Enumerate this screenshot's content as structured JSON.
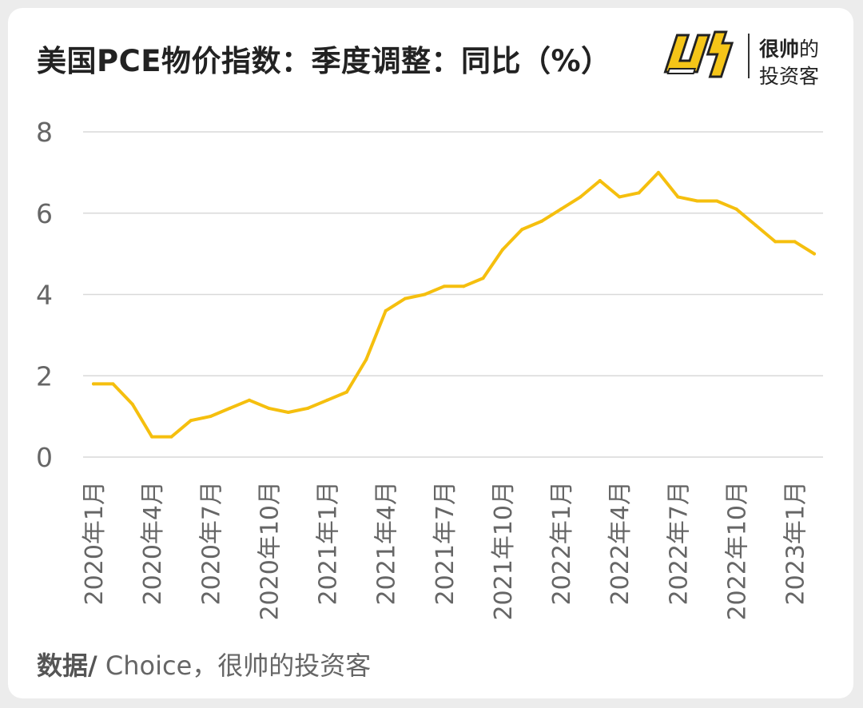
{
  "title": "美国PCE物价指数：季度调整：同比（%）",
  "brand": {
    "logo_icon": "shuai-logo-icon",
    "line1_bold": "很帅",
    "line1_rest": "的",
    "line2": "投资客"
  },
  "source": {
    "prefix": "数据/",
    "text": " Choice，很帅的投资客"
  },
  "colors": {
    "line": "#F5BF0E",
    "grid": "#D9D9D9",
    "tick_text": "#666666"
  },
  "chart_data": {
    "type": "line",
    "title": "美国PCE物价指数：季度调整：同比（%）",
    "xlabel": "",
    "ylabel": "",
    "ylim": [
      0,
      8
    ],
    "yticks": [
      "0",
      "2",
      "4",
      "6",
      "8"
    ],
    "grid": true,
    "legend": "none",
    "x": [
      "2020-01",
      "2020-02",
      "2020-03",
      "2020-04",
      "2020-05",
      "2020-06",
      "2020-07",
      "2020-08",
      "2020-09",
      "2020-10",
      "2020-11",
      "2020-12",
      "2021-01",
      "2021-02",
      "2021-03",
      "2021-04",
      "2021-05",
      "2021-06",
      "2021-07",
      "2021-08",
      "2021-09",
      "2021-10",
      "2021-11",
      "2021-12",
      "2022-01",
      "2022-02",
      "2022-03",
      "2022-04",
      "2022-05",
      "2022-06",
      "2022-07",
      "2022-08",
      "2022-09",
      "2022-10",
      "2022-11",
      "2022-12",
      "2023-01",
      "2023-02"
    ],
    "xtick_labels": [
      {
        "index": 0,
        "label": "2020年1月"
      },
      {
        "index": 3,
        "label": "2020年4月"
      },
      {
        "index": 6,
        "label": "2020年7月"
      },
      {
        "index": 9,
        "label": "2020年10月"
      },
      {
        "index": 12,
        "label": "2021年1月"
      },
      {
        "index": 15,
        "label": "2021年4月"
      },
      {
        "index": 18,
        "label": "2021年7月"
      },
      {
        "index": 21,
        "label": "2021年10月"
      },
      {
        "index": 24,
        "label": "2022年1月"
      },
      {
        "index": 27,
        "label": "2022年4月"
      },
      {
        "index": 30,
        "label": "2022年7月"
      },
      {
        "index": 33,
        "label": "2022年10月"
      },
      {
        "index": 36,
        "label": "2023年1月"
      }
    ],
    "series": [
      {
        "values": [
          1.8,
          1.8,
          1.3,
          0.5,
          0.5,
          0.9,
          1.0,
          1.2,
          1.4,
          1.2,
          1.1,
          1.2,
          1.4,
          1.6,
          2.4,
          3.6,
          3.9,
          4.0,
          4.2,
          4.2,
          4.4,
          5.1,
          5.6,
          5.8,
          6.1,
          6.4,
          6.8,
          6.4,
          6.5,
          7.0,
          6.4,
          6.3,
          6.3,
          6.1,
          5.7,
          5.3,
          5.3,
          5.0
        ]
      }
    ]
  }
}
